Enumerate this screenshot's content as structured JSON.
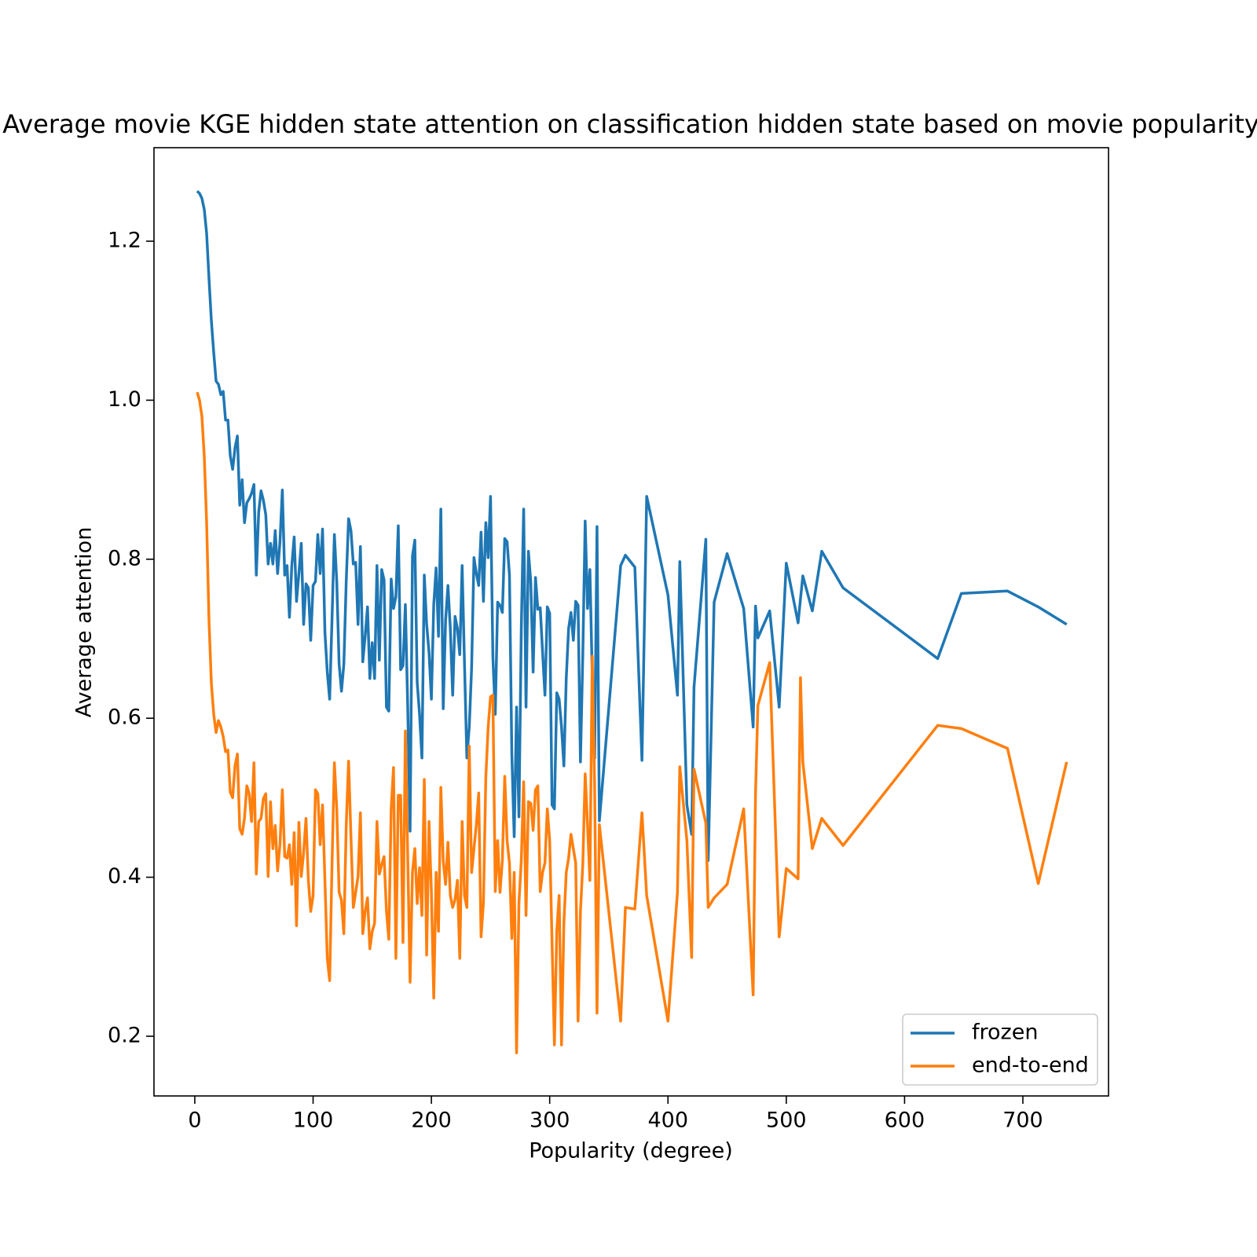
{
  "chart_data": {
    "type": "line",
    "title": "Average movie KGE hidden state attention on classification hidden state based on movie popularity",
    "xlabel": "Popularity (degree)",
    "ylabel": "Average attention",
    "x": [
      2,
      4,
      6,
      8,
      10,
      12,
      14,
      16,
      18,
      20,
      22,
      24,
      26,
      28,
      30,
      32,
      34,
      36,
      38,
      40,
      42,
      44,
      46,
      48,
      50,
      52,
      54,
      56,
      58,
      60,
      62,
      64,
      66,
      68,
      70,
      72,
      74,
      76,
      78,
      80,
      82,
      84,
      86,
      88,
      90,
      92,
      94,
      96,
      98,
      100,
      102,
      104,
      106,
      108,
      110,
      112,
      114,
      116,
      118,
      120,
      122,
      124,
      126,
      128,
      130,
      132,
      134,
      136,
      138,
      140,
      142,
      144,
      146,
      148,
      150,
      152,
      154,
      156,
      158,
      160,
      162,
      164,
      166,
      168,
      170,
      172,
      174,
      176,
      178,
      180,
      182,
      184,
      186,
      188,
      190,
      192,
      194,
      196,
      198,
      200,
      202,
      204,
      206,
      208,
      210,
      212,
      214,
      216,
      218,
      220,
      222,
      224,
      226,
      228,
      230,
      232,
      234,
      236,
      238,
      240,
      242,
      244,
      246,
      248,
      250,
      252,
      254,
      256,
      258,
      260,
      262,
      264,
      266,
      268,
      270,
      272,
      274,
      276,
      278,
      280,
      282,
      284,
      286,
      288,
      290,
      292,
      294,
      296,
      298,
      300,
      302,
      304,
      306,
      308,
      310,
      312,
      314,
      316,
      318,
      320,
      322,
      324,
      326,
      328,
      330,
      332,
      334,
      336,
      338,
      340,
      342,
      360,
      364,
      372,
      378,
      382,
      400,
      408,
      410,
      416,
      420,
      422,
      432,
      434,
      439,
      450,
      464,
      472,
      474,
      476,
      486,
      494,
      500,
      510,
      512,
      514,
      522,
      530,
      548,
      628,
      648,
      687,
      713,
      737
    ],
    "series": [
      {
        "name": "frozen",
        "color": "#1f77b4",
        "values": [
          1.263,
          1.26,
          1.254,
          1.24,
          1.21,
          1.153,
          1.1,
          1.06,
          1.024,
          1.02,
          1.007,
          1.011,
          0.975,
          0.975,
          0.93,
          0.913,
          0.94,
          0.955,
          0.868,
          0.9,
          0.846,
          0.871,
          0.876,
          0.883,
          0.894,
          0.78,
          0.859,
          0.886,
          0.874,
          0.856,
          0.794,
          0.82,
          0.794,
          0.836,
          0.782,
          0.822,
          0.887,
          0.78,
          0.792,
          0.727,
          0.792,
          0.828,
          0.747,
          0.782,
          0.82,
          0.718,
          0.769,
          0.764,
          0.698,
          0.767,
          0.772,
          0.831,
          0.782,
          0.838,
          0.708,
          0.658,
          0.624,
          0.725,
          0.831,
          0.772,
          0.668,
          0.634,
          0.668,
          0.772,
          0.851,
          0.836,
          0.794,
          0.796,
          0.718,
          0.816,
          0.671,
          0.703,
          0.74,
          0.65,
          0.695,
          0.65,
          0.792,
          0.673,
          0.787,
          0.774,
          0.614,
          0.609,
          0.775,
          0.738,
          0.753,
          0.842,
          0.661,
          0.666,
          0.743,
          0.614,
          0.458,
          0.804,
          0.824,
          0.645,
          0.605,
          0.55,
          0.78,
          0.718,
          0.683,
          0.624,
          0.743,
          0.789,
          0.703,
          0.863,
          0.612,
          0.723,
          0.767,
          0.713,
          0.629,
          0.728,
          0.713,
          0.68,
          0.792,
          0.668,
          0.55,
          0.589,
          0.663,
          0.802,
          0.782,
          0.767,
          0.834,
          0.747,
          0.846,
          0.802,
          0.879,
          0.676,
          0.605,
          0.746,
          0.742,
          0.733,
          0.826,
          0.822,
          0.78,
          0.555,
          0.451,
          0.614,
          0.476,
          0.713,
          0.863,
          0.614,
          0.81,
          0.772,
          0.658,
          0.777,
          0.737,
          0.739,
          0.683,
          0.629,
          0.74,
          0.732,
          0.491,
          0.486,
          0.632,
          0.624,
          0.589,
          0.54,
          0.65,
          0.713,
          0.733,
          0.698,
          0.747,
          0.742,
          0.545,
          0.68,
          0.848,
          0.738,
          0.787,
          0.653,
          0.55,
          0.841,
          0.471,
          0.792,
          0.805,
          0.79,
          0.547,
          0.879,
          0.755,
          0.629,
          0.797,
          0.491,
          0.454,
          0.639,
          0.825,
          0.421,
          0.746,
          0.807,
          0.738,
          0.589,
          0.741,
          0.701,
          0.735,
          0.614,
          0.795,
          0.72,
          0.75,
          0.779,
          0.735,
          0.81,
          0.764,
          0.675,
          0.757,
          0.76,
          0.74,
          0.718
        ]
      },
      {
        "name": "end-to-end",
        "color": "#ff7f0e",
        "values": [
          1.01,
          1.0,
          0.98,
          0.93,
          0.846,
          0.723,
          0.644,
          0.605,
          0.582,
          0.597,
          0.589,
          0.577,
          0.558,
          0.56,
          0.507,
          0.5,
          0.54,
          0.555,
          0.461,
          0.454,
          0.474,
          0.515,
          0.505,
          0.47,
          0.544,
          0.404,
          0.47,
          0.474,
          0.499,
          0.505,
          0.401,
          0.495,
          0.436,
          0.465,
          0.408,
          0.441,
          0.51,
          0.426,
          0.424,
          0.441,
          0.391,
          0.456,
          0.339,
          0.469,
          0.401,
          0.431,
          0.474,
          0.396,
          0.357,
          0.377,
          0.51,
          0.505,
          0.441,
          0.491,
          0.396,
          0.298,
          0.27,
          0.416,
          0.544,
          0.486,
          0.381,
          0.371,
          0.329,
          0.465,
          0.546,
          0.451,
          0.362,
          0.381,
          0.401,
          0.481,
          0.329,
          0.357,
          0.374,
          0.31,
          0.332,
          0.342,
          0.47,
          0.404,
          0.416,
          0.426,
          0.358,
          0.322,
          0.486,
          0.538,
          0.298,
          0.503,
          0.503,
          0.318,
          0.584,
          0.426,
          0.268,
          0.406,
          0.436,
          0.367,
          0.412,
          0.352,
          0.523,
          0.302,
          0.47,
          0.382,
          0.248,
          0.406,
          0.332,
          0.513,
          0.421,
          0.391,
          0.444,
          0.377,
          0.362,
          0.372,
          0.396,
          0.298,
          0.47,
          0.377,
          0.362,
          0.565,
          0.406,
          0.436,
          0.466,
          0.506,
          0.325,
          0.368,
          0.525,
          0.589,
          0.627,
          0.629,
          0.382,
          0.446,
          0.381,
          0.421,
          0.527,
          0.446,
          0.418,
          0.323,
          0.406,
          0.179,
          0.367,
          0.421,
          0.52,
          0.352,
          0.495,
          0.493,
          0.459,
          0.51,
          0.515,
          0.382,
          0.406,
          0.418,
          0.486,
          0.446,
          0.318,
          0.189,
          0.332,
          0.377,
          0.189,
          0.342,
          0.406,
          0.424,
          0.454,
          0.436,
          0.418,
          0.219,
          0.357,
          0.416,
          0.53,
          0.466,
          0.396,
          0.678,
          0.515,
          0.229,
          0.466,
          0.219,
          0.362,
          0.36,
          0.481,
          0.377,
          0.219,
          0.381,
          0.539,
          0.446,
          0.299,
          0.536,
          0.468,
          0.362,
          0.374,
          0.391,
          0.486,
          0.252,
          0.505,
          0.616,
          0.67,
          0.325,
          0.411,
          0.398,
          0.651,
          0.545,
          0.436,
          0.474,
          0.44,
          0.591,
          0.587,
          0.562,
          0.392,
          0.545
        ]
      }
    ],
    "xlim": [
      -34.5,
      772.4
    ],
    "ylim": [
      0.1249,
      1.3176
    ],
    "xticks": [
      0,
      100,
      200,
      300,
      400,
      500,
      600,
      700
    ],
    "yticks": [
      0.2,
      0.4,
      0.6,
      0.8,
      {
        "value": 1,
        "label": "1.0"
      },
      1.2
    ],
    "legend": "lower right"
  }
}
